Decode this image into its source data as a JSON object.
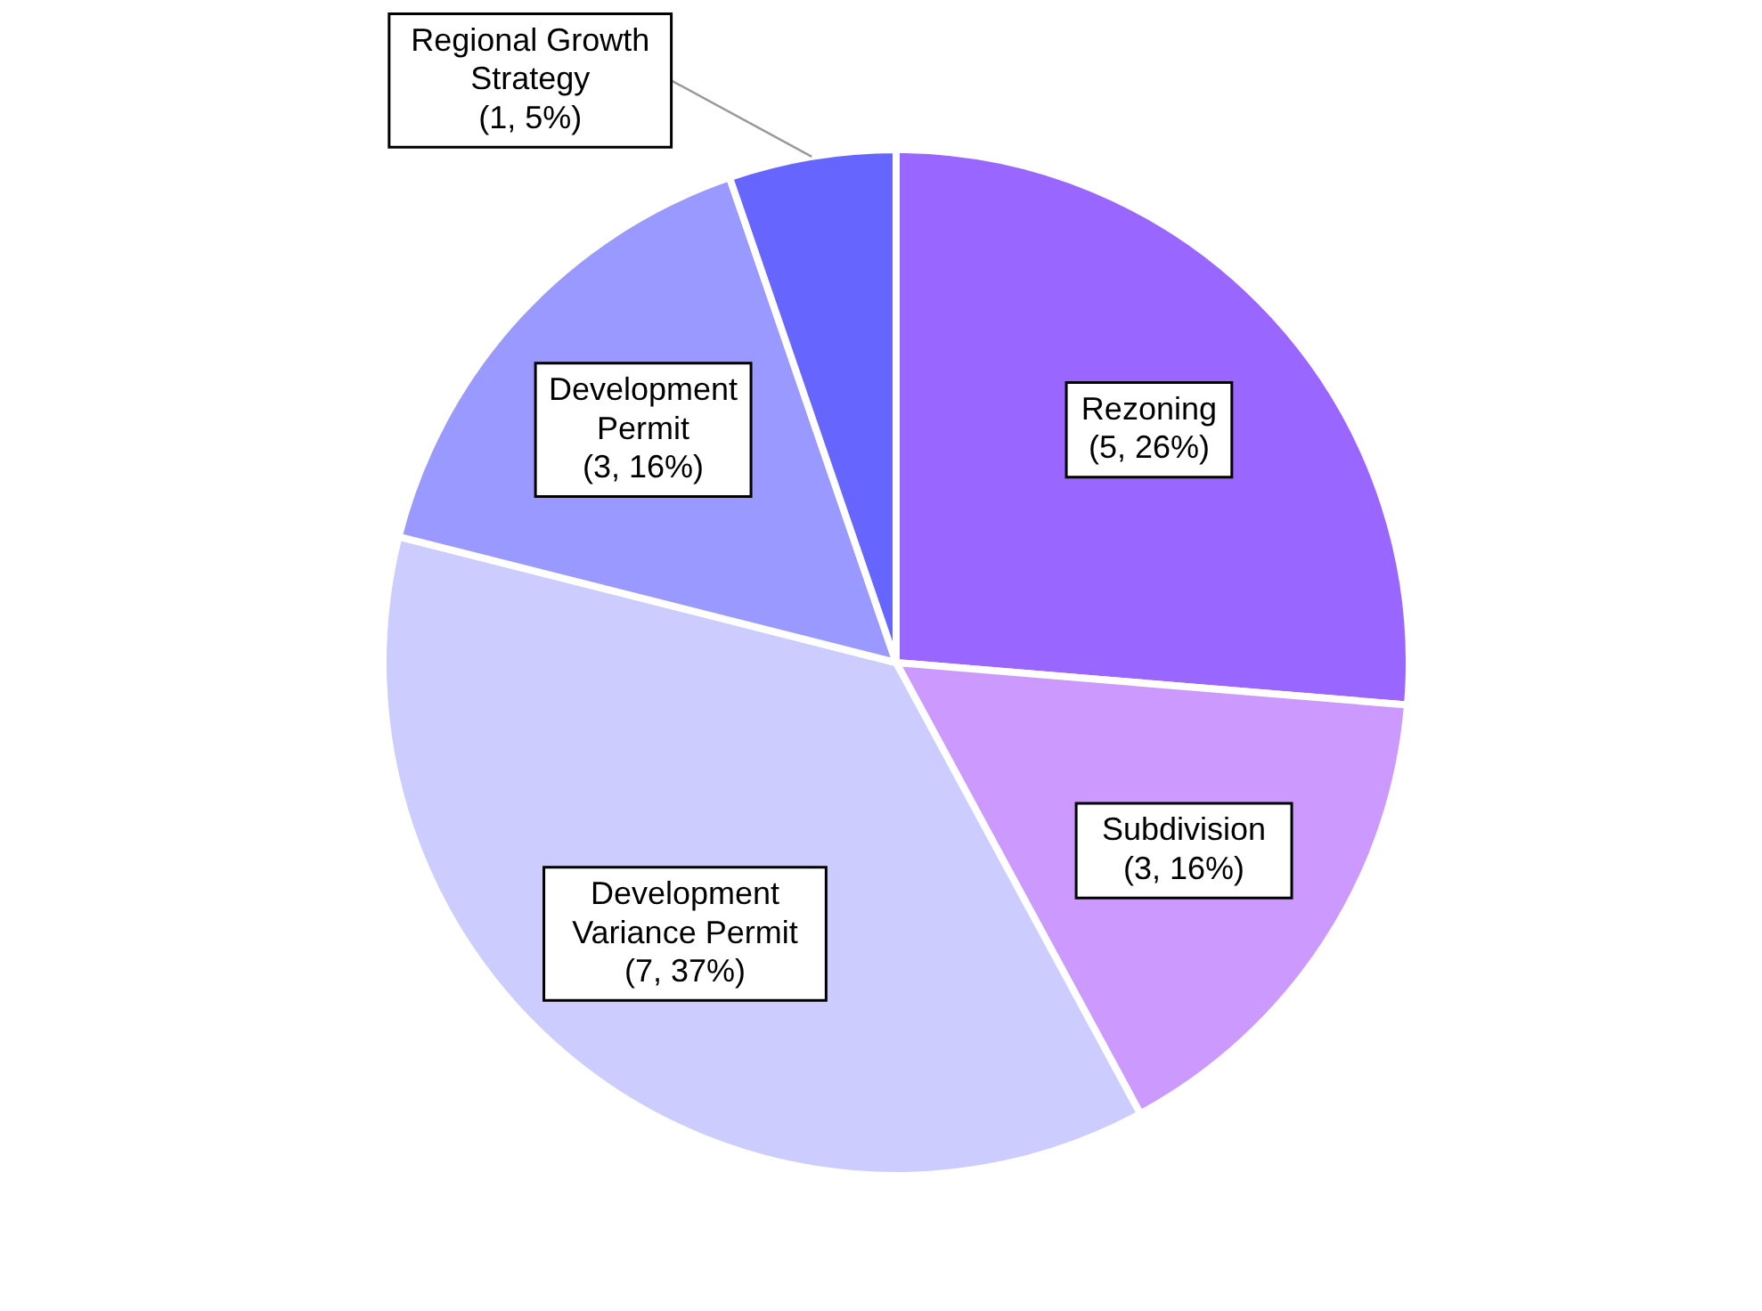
{
  "chart_data": {
    "type": "pie",
    "categories": [
      "Rezoning",
      "Subdivision",
      "Development Variance Permit",
      "Development Permit",
      "Regional Growth Strategy"
    ],
    "values": [
      5,
      3,
      7,
      3,
      1
    ],
    "value_labels": [
      "(5, 26%)",
      "(3, 16%)",
      "(7, 37%)",
      "(3, 16%)",
      "(1, 5%)"
    ],
    "colors": [
      "#9966ff",
      "#cc99ff",
      "#ccccff",
      "#9999ff",
      "#6666ff"
    ]
  }
}
